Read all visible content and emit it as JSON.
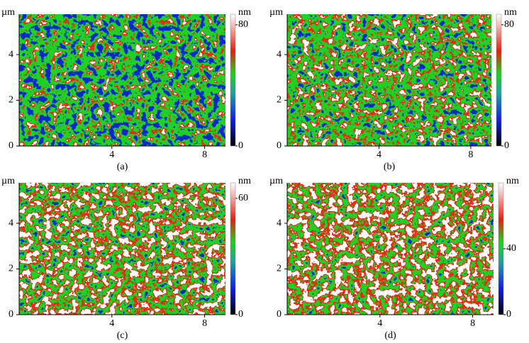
{
  "chart_data": [
    {
      "type": "heatmap",
      "label": "(a)",
      "y_label": "µm",
      "colorbar_label": "nm",
      "xlim": [
        0,
        8.9
      ],
      "ylim": [
        0,
        5.77
      ],
      "xticks": [
        4,
        8
      ],
      "yticks": [
        0,
        2,
        4
      ],
      "clim": [
        0,
        87
      ],
      "cticks": [
        0,
        80
      ]
    },
    {
      "type": "heatmap",
      "label": "(b)",
      "y_label": "µm",
      "colorbar_label": "nm",
      "xlim": [
        0,
        8.9
      ],
      "ylim": [
        0,
        5.77
      ],
      "xticks": [
        4,
        8
      ],
      "yticks": [
        0,
        2,
        4
      ],
      "clim": [
        0,
        87
      ],
      "cticks": [
        0,
        80
      ]
    },
    {
      "type": "heatmap",
      "label": "(c)",
      "y_label": "µm",
      "colorbar_label": "nm",
      "xlim": [
        0,
        8.9
      ],
      "ylim": [
        0,
        5.77
      ],
      "xticks": [
        4,
        8
      ],
      "yticks": [
        0,
        2,
        4
      ],
      "clim": [
        0,
        68
      ],
      "cticks": [
        0,
        60
      ]
    },
    {
      "type": "heatmap",
      "label": "(d)",
      "y_label": "µm",
      "colorbar_label": "nm",
      "xlim": [
        0,
        8.9
      ],
      "ylim": [
        0,
        5.77
      ],
      "xticks": [
        4,
        8
      ],
      "yticks": [
        0,
        2,
        4
      ],
      "clim": [
        0,
        80
      ],
      "cticks": [
        0,
        40
      ]
    }
  ]
}
